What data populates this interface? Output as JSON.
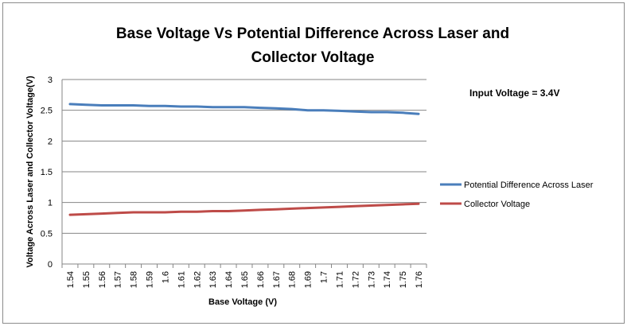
{
  "chart_data": {
    "type": "line",
    "title_line1": "Base Voltage Vs Potential Difference Across Laser and",
    "title_line2": "Collector Voltage",
    "xlabel": "Base Voltage (V)",
    "ylabel": "Voltage Across Laser and Collector Voltage(V)",
    "annotation": "Input Voltage = 3.4V",
    "ylim": [
      0,
      3
    ],
    "yticks": [
      "0",
      "0.5",
      "1",
      "1.5",
      "2",
      "2.5",
      "3"
    ],
    "grid": true,
    "legend_position": "right",
    "categories": [
      "1.54",
      "1.55",
      "1.56",
      "1.57",
      "1.58",
      "1.59",
      "1.6",
      "1.61",
      "1.62",
      "1.63",
      "1.64",
      "1.65",
      "1.66",
      "1.67",
      "1.68",
      "1.69",
      "1.7",
      "1.71",
      "1.72",
      "1.73",
      "1.74",
      "1.75",
      "1.76"
    ],
    "series": [
      {
        "name": "Potential Difference Across Laser",
        "color": "#4a7ebb",
        "values": [
          2.6,
          2.59,
          2.58,
          2.58,
          2.58,
          2.57,
          2.57,
          2.56,
          2.56,
          2.55,
          2.55,
          2.55,
          2.54,
          2.53,
          2.52,
          2.5,
          2.5,
          2.49,
          2.48,
          2.47,
          2.47,
          2.46,
          2.44
        ]
      },
      {
        "name": "Collector Voltage",
        "color": "#be4b48",
        "values": [
          0.8,
          0.81,
          0.82,
          0.83,
          0.84,
          0.84,
          0.84,
          0.85,
          0.85,
          0.86,
          0.86,
          0.87,
          0.88,
          0.89,
          0.9,
          0.91,
          0.92,
          0.93,
          0.94,
          0.95,
          0.96,
          0.97,
          0.98
        ]
      }
    ]
  }
}
